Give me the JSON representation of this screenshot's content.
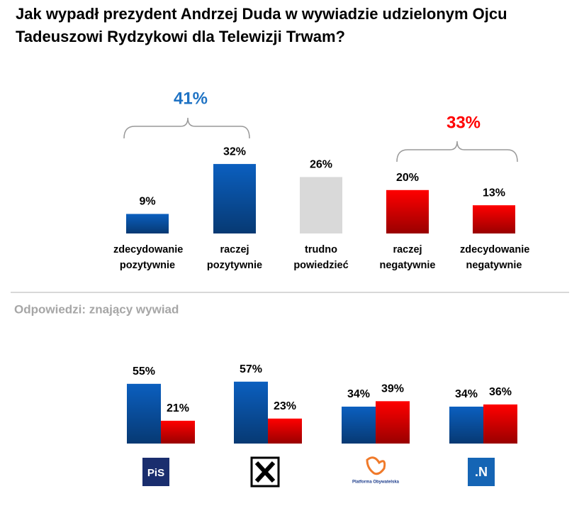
{
  "title": "Jak wypadł prezydent Andrzej Duda w wywiadzie udzielonym Ojcu Tadeuszowi Rydzykowi dla Telewizji Trwam?",
  "chart_data": [
    {
      "type": "bar",
      "categories": [
        "zdecydowanie pozytywnie",
        "raczej pozytywnie",
        "trudno powiedzieć",
        "raczej negatywnie",
        "zdecydowanie negatywnie"
      ],
      "values": [
        9,
        32,
        26,
        20,
        13
      ],
      "value_labels": [
        "9%",
        "32%",
        "26%",
        "20%",
        "13%"
      ],
      "colors": [
        "#0b5fbf",
        "#0b5fbf",
        "#d9d9d9",
        "#ff0000",
        "#ff0000"
      ],
      "annotations": [
        {
          "text": "41%",
          "color": "#1f73c4"
        },
        {
          "text": "33%",
          "color": "#ff0000"
        }
      ]
    },
    {
      "type": "grouped-bar",
      "subtitle": "Odpowiedzi: znający wywiad",
      "categories": [
        "PiS",
        null,
        "Platforma Obywatelska",
        ".N"
      ],
      "series": [
        {
          "color": "#0b5fbf",
          "values": [
            55,
            57,
            34,
            34
          ],
          "value_labels": [
            "55%",
            "57%",
            "34%",
            "34%"
          ]
        },
        {
          "color": "#ff0000",
          "values": [
            21,
            23,
            39,
            36
          ],
          "value_labels": [
            "21%",
            "23%",
            "39%",
            "36%"
          ]
        }
      ]
    }
  ]
}
